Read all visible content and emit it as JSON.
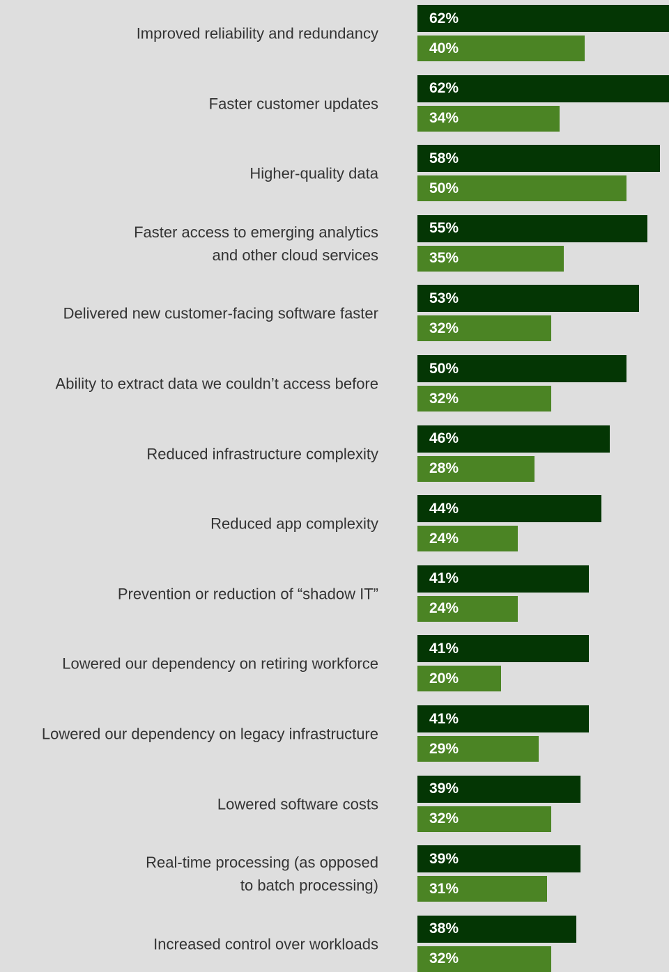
{
  "chart_data": {
    "type": "bar",
    "orientation": "horizontal",
    "categories": [
      "Improved reliability and redundancy",
      "Faster customer updates",
      "Higher-quality data",
      "Faster access to emerging analytics\nand other cloud services",
      "Delivered new customer-facing software faster",
      "Ability to extract data we couldn’t access before",
      "Reduced infrastructure complexity",
      "Reduced app complexity",
      "Prevention or reduction of “shadow IT”",
      "Lowered our dependency on retiring workforce",
      "Lowered our dependency on legacy infrastructure",
      "Lowered software costs",
      "Real-time processing (as opposed\nto batch processing)",
      "Increased control over workloads"
    ],
    "series": [
      {
        "color": "#043604",
        "values": [
          62,
          62,
          58,
          55,
          53,
          50,
          46,
          44,
          41,
          41,
          41,
          39,
          39,
          38
        ],
        "value_labels": [
          "62%",
          "62%",
          "58%",
          "55%",
          "53%",
          "50%",
          "46%",
          "44%",
          "41%",
          "41%",
          "41%",
          "39%",
          "39%",
          "38%"
        ]
      },
      {
        "color": "#4b8424",
        "values": [
          40,
          34,
          50,
          35,
          32,
          32,
          28,
          24,
          24,
          20,
          29,
          32,
          31,
          32
        ],
        "value_labels": [
          "40%",
          "34%",
          "50%",
          "35%",
          "32%",
          "32%",
          "28%",
          "24%",
          "24%",
          "20%",
          "29%",
          "32%",
          "31%",
          "32%"
        ]
      }
    ]
  }
}
